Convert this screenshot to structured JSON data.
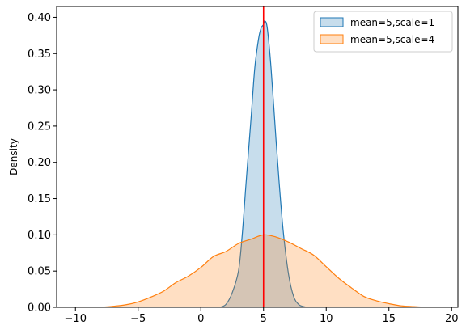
{
  "chart_data": {
    "type": "area",
    "title": "",
    "xlabel": "",
    "ylabel": "Density",
    "xlim": [
      -11.5,
      20.5
    ],
    "ylim": [
      0,
      0.415
    ],
    "xticks": [
      -10,
      -5,
      0,
      5,
      10,
      15,
      20
    ],
    "xtick_labels": [
      "−10",
      "−5",
      "0",
      "5",
      "10",
      "15",
      "20"
    ],
    "yticks": [
      0,
      0.05,
      0.1,
      0.15,
      0.2,
      0.25,
      0.3,
      0.35,
      0.4
    ],
    "ytick_labels": [
      "0.00",
      "0.05",
      "0.10",
      "0.15",
      "0.20",
      "0.25",
      "0.30",
      "0.35",
      "0.40"
    ],
    "grid": false,
    "legend_position": "top-right",
    "series": [
      {
        "name": "mean=5,scale=1",
        "line_color": "#1f77b4",
        "fill_color": "#1f77b4",
        "x": [
          1.5,
          2.0,
          2.5,
          3.0,
          3.3,
          3.6,
          4.0,
          4.3,
          4.6,
          4.8,
          5.0,
          5.1,
          5.3,
          5.6,
          6.0,
          6.3,
          6.6,
          7.0,
          7.4,
          7.8,
          8.2,
          8.5
        ],
        "y": [
          0.0,
          0.004,
          0.02,
          0.05,
          0.1,
          0.17,
          0.26,
          0.33,
          0.37,
          0.385,
          0.39,
          0.395,
          0.385,
          0.33,
          0.23,
          0.16,
          0.1,
          0.045,
          0.015,
          0.004,
          0.001,
          0.0
        ]
      },
      {
        "name": "mean=5,scale=4",
        "line_color": "#ff7f0e",
        "fill_color": "#ff7f0e",
        "x": [
          -8.0,
          -7.0,
          -6.0,
          -5.0,
          -4.0,
          -3.0,
          -2.0,
          -1.0,
          0.0,
          1.0,
          2.0,
          3.0,
          4.0,
          5.0,
          6.0,
          7.0,
          8.0,
          9.0,
          10.0,
          11.0,
          12.0,
          13.0,
          14.0,
          15.0,
          16.0,
          17.0,
          18.0
        ],
        "y": [
          0.0,
          0.0015,
          0.0035,
          0.0075,
          0.014,
          0.022,
          0.034,
          0.043,
          0.055,
          0.07,
          0.077,
          0.088,
          0.094,
          0.1,
          0.097,
          0.09,
          0.081,
          0.072,
          0.056,
          0.04,
          0.027,
          0.015,
          0.009,
          0.005,
          0.002,
          0.001,
          0.0
        ]
      }
    ],
    "vline": {
      "x": 5,
      "color": "#ff0000"
    }
  }
}
